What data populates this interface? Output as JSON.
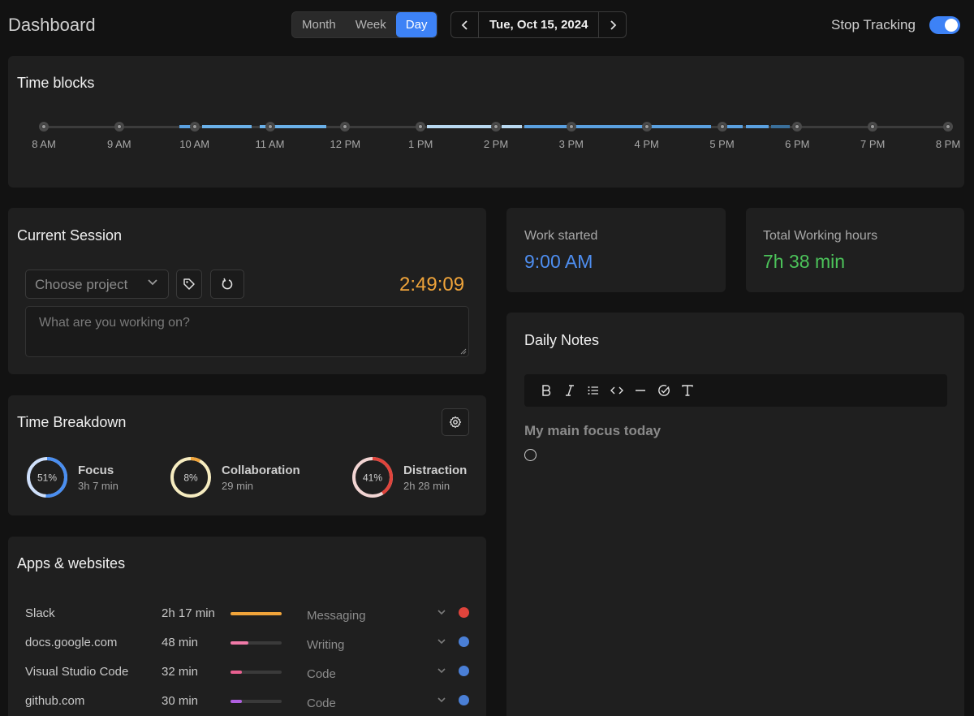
{
  "header": {
    "title": "Dashboard",
    "view_tabs": [
      {
        "label": "Month",
        "active": false
      },
      {
        "label": "Week",
        "active": false
      },
      {
        "label": "Day",
        "active": true
      }
    ],
    "date": "Tue, Oct 15, 2024",
    "stop_tracking_label": "Stop Tracking",
    "tracking_on": true
  },
  "time_blocks": {
    "title": "Time blocks",
    "hours": [
      "8 AM",
      "9 AM",
      "10 AM",
      "11 AM",
      "12 PM",
      "1 PM",
      "2 PM",
      "3 PM",
      "4 PM",
      "5 PM",
      "6 PM",
      "7 PM",
      "8 PM"
    ]
  },
  "current_session": {
    "title": "Current Session",
    "project_placeholder": "Choose project",
    "timer": "2:49:09",
    "task_placeholder": "What are you working on?"
  },
  "work_started": {
    "label": "Work started",
    "value": "9:00 AM",
    "color": "#4e8ef0"
  },
  "total_hours": {
    "label": "Total Working hours",
    "value": "7h 38 min",
    "color": "#4cc35a"
  },
  "breakdown": {
    "title": "Time Breakdown",
    "items": [
      {
        "percent": "51%",
        "name": "Focus",
        "time": "3h 7 min",
        "color": "#4a8ef0",
        "track": "#cfe0fb",
        "fraction": 0.51
      },
      {
        "percent": "8%",
        "name": "Collaboration",
        "time": "29 min",
        "color": "#f0a43a",
        "track": "#f6ecc0",
        "fraction": 0.08
      },
      {
        "percent": "41%",
        "name": "Distraction",
        "time": "2h 28 min",
        "color": "#e0443c",
        "track": "#f2d5d3",
        "fraction": 0.41
      }
    ]
  },
  "apps": {
    "title": "Apps & websites",
    "rows": [
      {
        "name": "Slack",
        "time": "2h 17 min",
        "fraction": 1.0,
        "bar_color": "#f0a43a",
        "category": "Messaging",
        "dot_color": "#e0443c"
      },
      {
        "name": "docs.google.com",
        "time": "48 min",
        "fraction": 0.35,
        "bar_color": "#f07aa8",
        "category": "Writing",
        "dot_color": "#4a7fd6"
      },
      {
        "name": "Visual Studio Code",
        "time": "32 min",
        "fraction": 0.23,
        "bar_color": "#e86090",
        "category": "Code",
        "dot_color": "#4a7fd6"
      },
      {
        "name": "github.com",
        "time": "30 min",
        "fraction": 0.22,
        "bar_color": "#b060e0",
        "category": "Code",
        "dot_color": "#4a7fd6"
      }
    ]
  },
  "daily_notes": {
    "title": "Daily Notes",
    "toolbar": [
      "bold-icon",
      "italic-icon",
      "list-icon",
      "code-icon",
      "divider-icon",
      "check-icon",
      "text-icon"
    ],
    "heading": "My main focus today"
  }
}
